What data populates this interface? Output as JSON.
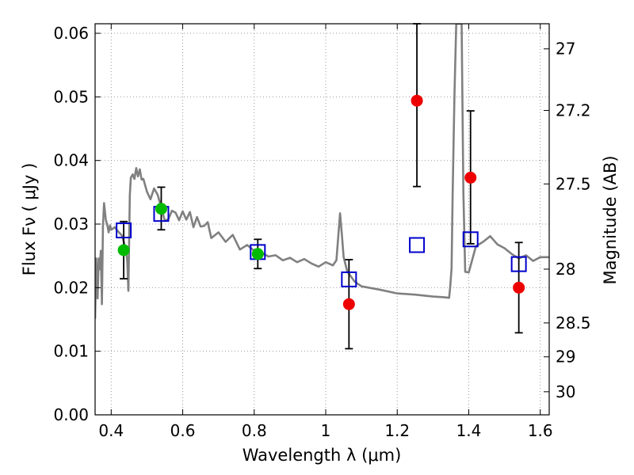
{
  "chart_data": {
    "type": "scatter",
    "xlabel": "Wavelength  λ (μm)",
    "ylabel": "Flux  Fν  ( μJy )",
    "y2label": "Magnitude (AB)",
    "xlim": [
      0.355,
      1.625
    ],
    "ylim": [
      0.0,
      0.0615
    ],
    "x_ticks": [
      {
        "value": 0.4,
        "label": "0.4"
      },
      {
        "value": 0.6,
        "label": "0.6"
      },
      {
        "value": 0.8,
        "label": "0.8"
      },
      {
        "value": 1.0,
        "label": "1"
      },
      {
        "value": 1.2,
        "label": "1.2"
      },
      {
        "value": 1.4,
        "label": "1.4"
      },
      {
        "value": 1.6,
        "label": "1.6"
      }
    ],
    "y_ticks": [
      {
        "value": 0.0,
        "label": "0.00"
      },
      {
        "value": 0.01,
        "label": "0.01"
      },
      {
        "value": 0.02,
        "label": "0.02"
      },
      {
        "value": 0.03,
        "label": "0.03"
      },
      {
        "value": 0.04,
        "label": "0.04"
      },
      {
        "value": 0.05,
        "label": "0.05"
      },
      {
        "value": 0.06,
        "label": "0.06"
      }
    ],
    "y2_ticks": [
      {
        "value": 27,
        "label": "27"
      },
      {
        "value": 27.2,
        "label": "27.2"
      },
      {
        "value": 27.5,
        "label": "27.5"
      },
      {
        "value": 28,
        "label": "28"
      },
      {
        "value": 28.5,
        "label": "28.5"
      },
      {
        "value": 29,
        "label": "29"
      },
      {
        "value": 30,
        "label": "30"
      }
    ],
    "grid": true,
    "colors": {
      "template": "#808080",
      "model": "#0000cc",
      "green": "#00bb00",
      "red": "#ee0000",
      "errorbar": "#000000"
    },
    "template_sed": {
      "x": [
        0.355,
        0.358,
        0.362,
        0.365,
        0.368,
        0.371,
        0.374,
        0.377,
        0.38,
        0.385,
        0.39,
        0.393,
        0.397,
        0.4,
        0.41,
        0.42,
        0.43,
        0.44,
        0.445,
        0.448,
        0.452,
        0.455,
        0.46,
        0.465,
        0.47,
        0.475,
        0.48,
        0.485,
        0.49,
        0.5,
        0.51,
        0.52,
        0.53,
        0.54,
        0.55,
        0.56,
        0.57,
        0.58,
        0.59,
        0.6,
        0.61,
        0.62,
        0.63,
        0.64,
        0.65,
        0.66,
        0.67,
        0.68,
        0.7,
        0.72,
        0.74,
        0.76,
        0.78,
        0.8,
        0.82,
        0.84,
        0.86,
        0.88,
        0.9,
        0.92,
        0.94,
        0.96,
        0.98,
        1.0,
        1.02,
        1.03,
        1.035,
        1.04,
        1.045,
        1.05,
        1.06,
        1.08,
        1.1,
        1.15,
        1.2,
        1.25,
        1.3,
        1.33,
        1.345,
        1.348,
        1.352,
        1.355,
        1.36,
        1.365,
        1.37,
        1.375,
        1.38,
        1.385,
        1.39,
        1.4,
        1.42,
        1.44,
        1.46,
        1.48,
        1.5,
        1.52,
        1.54,
        1.56,
        1.58,
        1.6,
        1.625
      ],
      "y": [
        0.0151,
        0.0246,
        0.0183,
        0.0246,
        0.0229,
        0.0258,
        0.0174,
        0.0296,
        0.0333,
        0.0307,
        0.0296,
        0.0287,
        0.0298,
        0.0291,
        0.0295,
        0.0288,
        0.0282,
        0.0263,
        0.0242,
        0.0195,
        0.0345,
        0.0373,
        0.0378,
        0.0371,
        0.0388,
        0.0375,
        0.0386,
        0.037,
        0.0371,
        0.0351,
        0.0339,
        0.0356,
        0.0346,
        0.0326,
        0.0305,
        0.0308,
        0.0321,
        0.0318,
        0.0306,
        0.032,
        0.0307,
        0.0319,
        0.0295,
        0.0311,
        0.0296,
        0.0297,
        0.0303,
        0.0278,
        0.0287,
        0.0272,
        0.0283,
        0.026,
        0.0267,
        0.0258,
        0.0255,
        0.0249,
        0.0251,
        0.0243,
        0.0247,
        0.024,
        0.0245,
        0.0238,
        0.0233,
        0.024,
        0.0235,
        0.0243,
        0.028,
        0.0317,
        0.0285,
        0.0248,
        0.0226,
        0.021,
        0.0202,
        0.0197,
        0.0191,
        0.0189,
        0.0186,
        0.0185,
        0.0184,
        0.02,
        0.023,
        0.035,
        0.05,
        0.0615,
        0.0615,
        0.0615,
        0.0615,
        0.035,
        0.0225,
        0.0224,
        0.0265,
        0.0272,
        0.0281,
        0.0268,
        0.0262,
        0.0253,
        0.0246,
        0.0251,
        0.0242,
        0.0248,
        0.0248
      ]
    },
    "model_points": [
      {
        "x": 0.435,
        "y": 0.029
      },
      {
        "x": 0.54,
        "y": 0.0316
      },
      {
        "x": 0.81,
        "y": 0.0256
      },
      {
        "x": 1.065,
        "y": 0.0213
      },
      {
        "x": 1.255,
        "y": 0.0267
      },
      {
        "x": 1.405,
        "y": 0.0276
      },
      {
        "x": 1.54,
        "y": 0.0237
      }
    ],
    "observed_points": [
      {
        "x": 0.435,
        "y": 0.0259,
        "yerr_low": 0.0214,
        "yerr_high": 0.0304,
        "color": "green"
      },
      {
        "x": 0.54,
        "y": 0.0324,
        "yerr_low": 0.0291,
        "yerr_high": 0.0358,
        "color": "green"
      },
      {
        "x": 0.81,
        "y": 0.0253,
        "yerr_low": 0.023,
        "yerr_high": 0.0276,
        "color": "green"
      },
      {
        "x": 1.065,
        "y": 0.0174,
        "yerr_low": 0.0104,
        "yerr_high": 0.0244,
        "color": "red"
      },
      {
        "x": 1.255,
        "y": 0.0494,
        "yerr_low": 0.0359,
        "yerr_high": 0.0615,
        "color": "red"
      },
      {
        "x": 1.405,
        "y": 0.0373,
        "yerr_low": 0.0269,
        "yerr_high": 0.0478,
        "color": "red"
      },
      {
        "x": 1.54,
        "y": 0.02,
        "yerr_low": 0.0129,
        "yerr_high": 0.0271,
        "color": "red"
      }
    ]
  }
}
